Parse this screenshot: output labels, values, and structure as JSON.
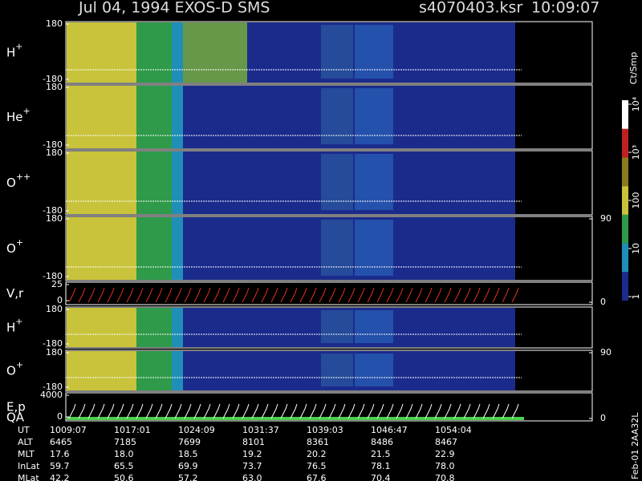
{
  "header": {
    "title": "Jul 04, 1994   EXOS-D SMS",
    "file": "s4070403.ksr",
    "time": "10:09:07"
  },
  "chart_data": [
    {
      "type": "spectrogram",
      "label": "H",
      "charge": "+",
      "ylim": [
        -180,
        180
      ],
      "yticks": [
        -180,
        180
      ]
    },
    {
      "type": "spectrogram",
      "label": "He",
      "charge": "+",
      "ylim": [
        -180,
        180
      ],
      "yticks": [
        -180,
        180
      ]
    },
    {
      "type": "spectrogram",
      "label": "O",
      "charge": "++",
      "ylim": [
        -180,
        180
      ],
      "yticks": [
        -180,
        180
      ]
    },
    {
      "type": "spectrogram",
      "label": "O",
      "charge": "+",
      "ylim": [
        -180,
        180
      ],
      "yticks": [
        -180,
        180
      ],
      "y2lim": [
        0,
        90
      ],
      "y2ticks": [
        90
      ]
    },
    {
      "type": "sweep",
      "label": "V,r",
      "ylim": [
        0,
        25
      ],
      "yticks": [
        0,
        25
      ],
      "y2lim": [
        0,
        90
      ],
      "y2ticks": [
        0
      ]
    },
    {
      "type": "spectrogram",
      "label": "H",
      "charge": "+",
      "ylim": [
        -180,
        180
      ],
      "yticks": [
        -180,
        180
      ]
    },
    {
      "type": "spectrogram",
      "label": "O",
      "charge": "+",
      "ylim": [
        -180,
        180
      ],
      "yticks": [
        -180,
        180
      ],
      "y2lim": [
        0,
        90
      ],
      "y2ticks": [
        90
      ]
    },
    {
      "type": "sweep",
      "label": "E,p",
      "label2": "QA",
      "ylim": [
        0,
        4000
      ],
      "yticks": [
        0,
        4000
      ],
      "y2lim": [
        0,
        90
      ],
      "y2ticks": [
        0
      ]
    }
  ],
  "colorbar": {
    "label": "Ct/Smp",
    "log": true,
    "lim": [
      1,
      10000
    ],
    "ticks": [
      1,
      10,
      100,
      {
        "value": 1000,
        "label": "10³"
      },
      {
        "value": 10000,
        "label": "10⁴"
      }
    ]
  },
  "table": {
    "rows": [
      [
        "UT",
        "1009:07",
        "1017:01",
        "1024:09",
        "1031:37",
        "1039:03",
        "1046:47",
        "1054:04"
      ],
      [
        "ALT",
        "6465",
        "7185",
        "7699",
        "8101",
        "8361",
        "8486",
        "8467"
      ],
      [
        "MLT",
        "17.6",
        "18.0",
        "18.5",
        "19.2",
        "20.2",
        "21.5",
        "22.9"
      ],
      [
        "InLat",
        "59.7",
        "65.5",
        "69.9",
        "73.7",
        "76.5",
        "78.1",
        "78.0"
      ],
      [
        "MLat",
        "42.2",
        "50.6",
        "57.2",
        "63.0",
        "67.6",
        "70.4",
        "70.8"
      ]
    ]
  },
  "footer": {
    "id": "Feb-01 2AA32L"
  }
}
